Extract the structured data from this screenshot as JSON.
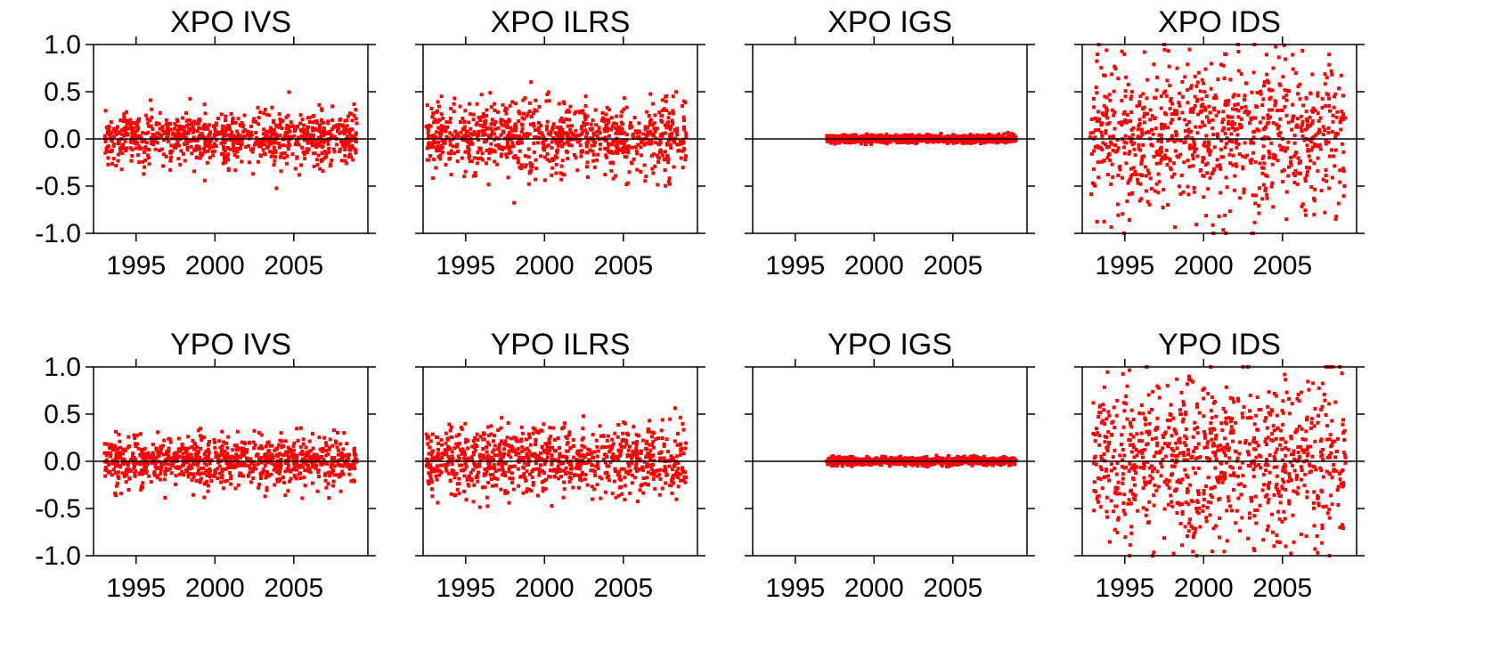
{
  "chart_data": [
    {
      "type": "scatter",
      "title": "XPO IVS",
      "xlabel": "",
      "ylabel": "",
      "xlim": [
        1992.3,
        2009.7
      ],
      "ylim": [
        -1.0,
        1.0
      ],
      "x_ticks": [
        "1995",
        "2000",
        "2005"
      ],
      "y_ticks": [
        "1.0",
        "0.5",
        "0.0",
        "-0.5",
        "-1.0"
      ],
      "marker_color": "#ff0000",
      "series": [
        {
          "x_range": [
            1993.0,
            2009.0
          ],
          "spread": 0.13,
          "outliers": 0.4
        }
      ]
    },
    {
      "type": "scatter",
      "title": "XPO ILRS",
      "xlabel": "",
      "ylabel": "",
      "xlim": [
        1992.3,
        2009.7
      ],
      "ylim": [
        -1.0,
        1.0
      ],
      "x_ticks": [
        "1995",
        "2000",
        "2005"
      ],
      "y_ticks": [],
      "marker_color": "#ff0000",
      "series": [
        {
          "x_range": [
            1992.5,
            2009.0
          ],
          "spread": 0.18,
          "outliers": 0.5
        }
      ]
    },
    {
      "type": "scatter",
      "title": "XPO IGS",
      "xlabel": "",
      "ylabel": "",
      "xlim": [
        1992.3,
        2009.7
      ],
      "ylim": [
        -1.0,
        1.0
      ],
      "x_ticks": [
        "1995",
        "2000",
        "2005"
      ],
      "y_ticks": [],
      "marker_color": "#ff0000",
      "series": [
        {
          "x_range": [
            1997.0,
            2009.0
          ],
          "spread": 0.02,
          "outliers": 0.03
        }
      ]
    },
    {
      "type": "scatter",
      "title": "XPO IDS",
      "xlabel": "",
      "ylabel": "",
      "xlim": [
        1992.3,
        2009.7
      ],
      "ylim": [
        -1.0,
        1.0
      ],
      "x_ticks": [
        "1995",
        "2000",
        "2005"
      ],
      "y_ticks": [],
      "marker_color": "#ff0000",
      "series": [
        {
          "x_range": [
            1992.8,
            2009.0
          ],
          "spread": 0.38,
          "outliers": 0.3
        }
      ]
    },
    {
      "type": "scatter",
      "title": "YPO IVS",
      "xlabel": "",
      "ylabel": "",
      "xlim": [
        1992.3,
        2009.7
      ],
      "ylim": [
        -1.0,
        1.0
      ],
      "x_ticks": [
        "1995",
        "2000",
        "2005"
      ],
      "y_ticks": [
        "1.0",
        "0.5",
        "0.0",
        "-0.5",
        "-1.0"
      ],
      "marker_color": "#ff0000",
      "series": [
        {
          "x_range": [
            1993.0,
            2009.0
          ],
          "spread": 0.12,
          "outliers": 0.4
        }
      ]
    },
    {
      "type": "scatter",
      "title": "YPO ILRS",
      "xlabel": "",
      "ylabel": "",
      "xlim": [
        1992.3,
        2009.7
      ],
      "ylim": [
        -1.0,
        1.0
      ],
      "x_ticks": [
        "1995",
        "2000",
        "2005"
      ],
      "y_ticks": [],
      "marker_color": "#ff0000",
      "series": [
        {
          "x_range": [
            1992.5,
            2009.0
          ],
          "spread": 0.17,
          "outliers": 0.45
        }
      ]
    },
    {
      "type": "scatter",
      "title": "YPO IGS",
      "xlabel": "",
      "ylabel": "",
      "xlim": [
        1992.3,
        2009.7
      ],
      "ylim": [
        -1.0,
        1.0
      ],
      "x_ticks": [
        "1995",
        "2000",
        "2005"
      ],
      "y_ticks": [],
      "marker_color": "#ff0000",
      "series": [
        {
          "x_range": [
            1997.0,
            2009.0
          ],
          "spread": 0.02,
          "outliers": 0.04
        }
      ]
    },
    {
      "type": "scatter",
      "title": "YPO IDS",
      "xlabel": "",
      "ylabel": "",
      "xlim": [
        1992.3,
        2009.7
      ],
      "ylim": [
        -1.0,
        1.0
      ],
      "x_ticks": [
        "1995",
        "2000",
        "2005"
      ],
      "y_ticks": [],
      "marker_color": "#ff0000",
      "series": [
        {
          "x_range": [
            1993.0,
            2009.0
          ],
          "spread": 0.4,
          "outliers": 0.25
        }
      ]
    }
  ]
}
